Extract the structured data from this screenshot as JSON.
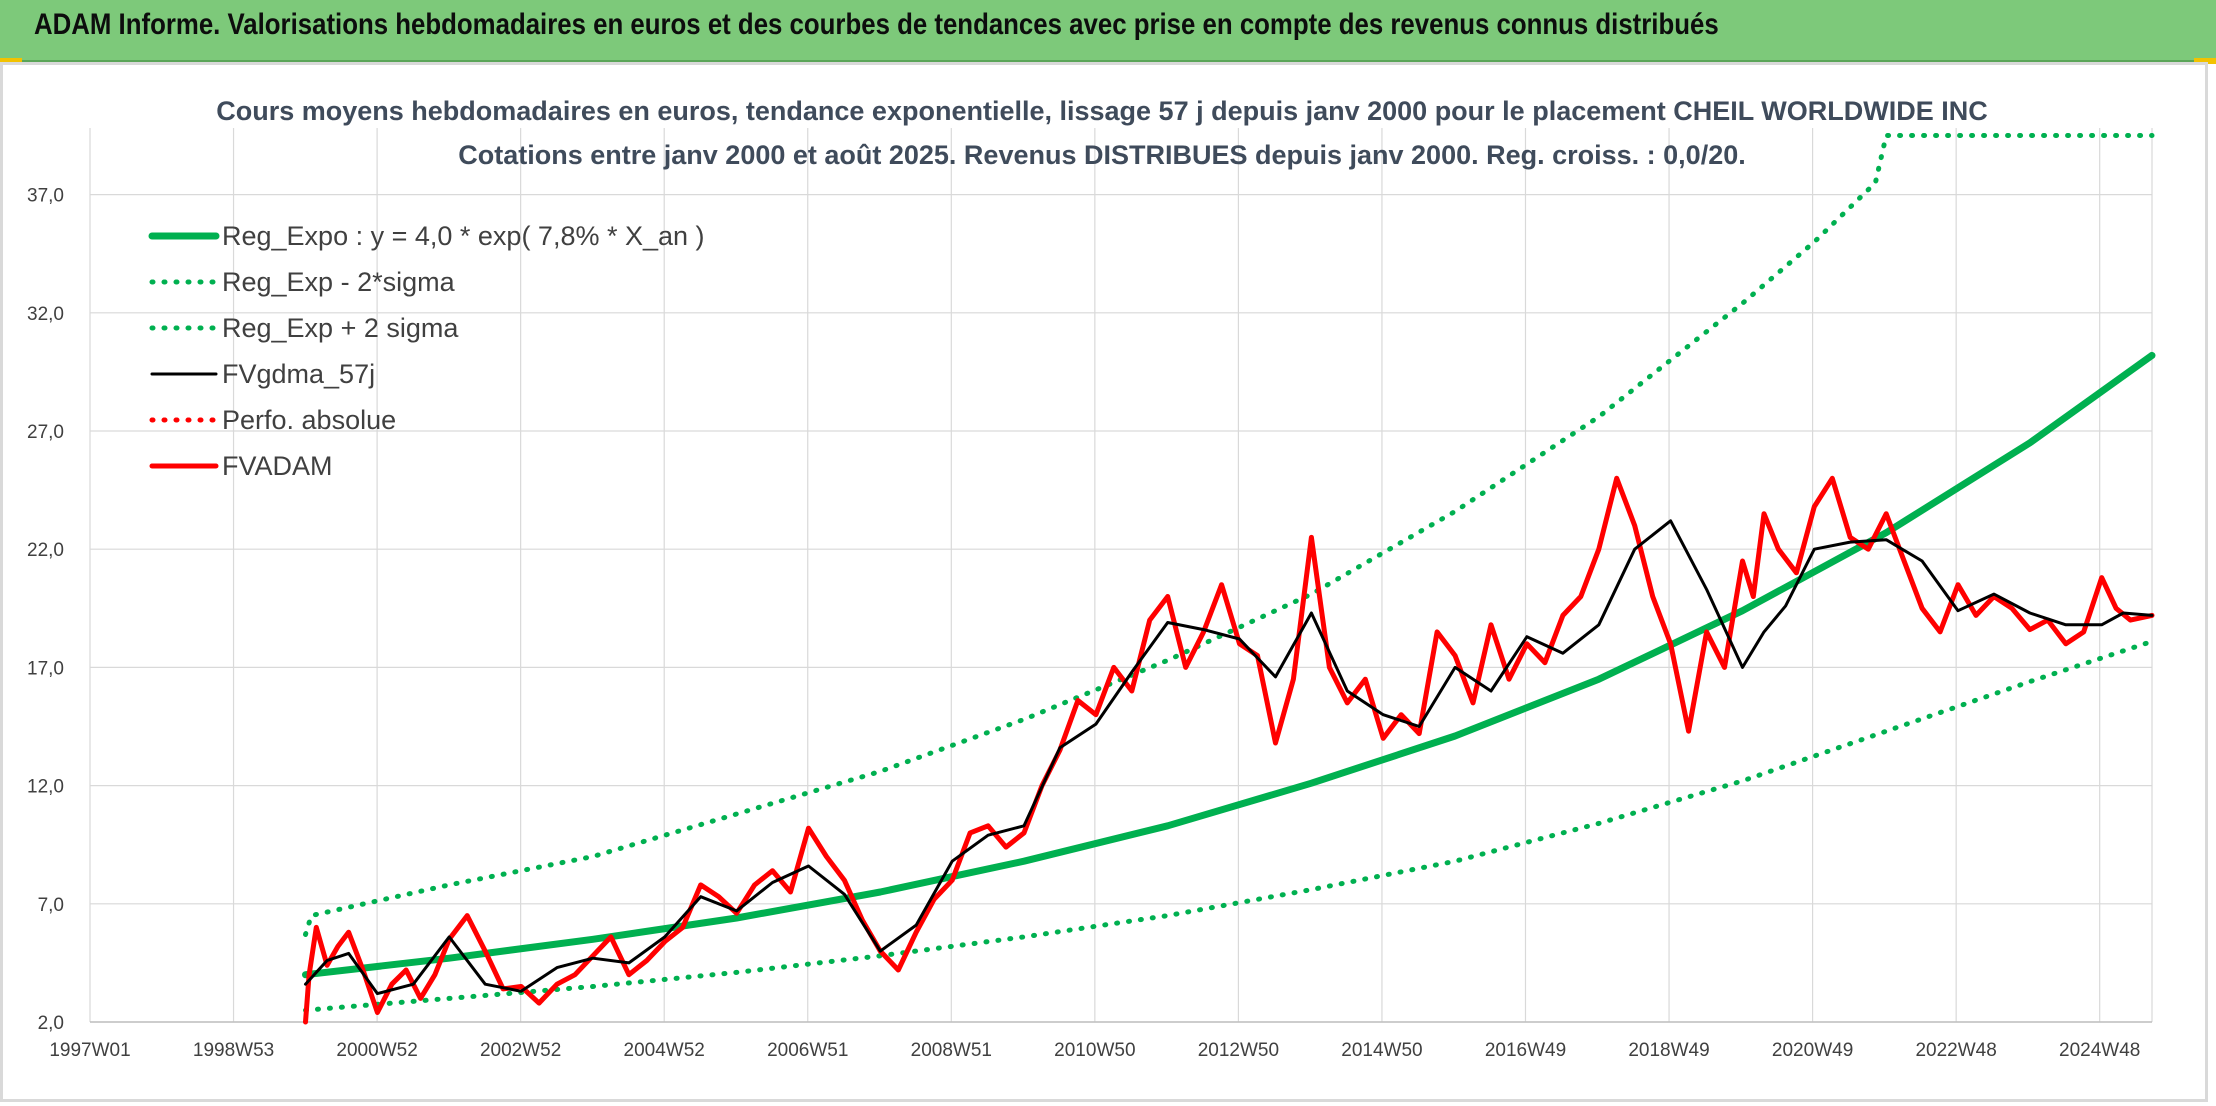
{
  "header": {
    "banner_title": "ADAM Informe. Valorisations hebdomadaires en euros et des courbes de tendances avec prise en compte des revenus connus distribués"
  },
  "colors": {
    "banner_bg": "#7dc97a",
    "trend_green": "#00b050",
    "price_red": "#ff0000",
    "smooth_black": "#000000",
    "grid": "#d9d9d9"
  },
  "chart_data": {
    "type": "line",
    "title": "Cours moyens hebdomadaires en euros, tendance exponentielle, lissage 57 j depuis janv 2000 pour le placement CHEIL WORLDWIDE INC",
    "subtitle": "Cotations entre janv 2000 et août 2025. Revenus DISTRIBUES depuis janv 2000. Reg. croiss. : 0,0/20.",
    "xlabel": "",
    "ylabel": "",
    "x_tick_labels": [
      "1997W01",
      "1998W53",
      "2000W52",
      "2002W52",
      "2004W52",
      "2006W51",
      "2008W51",
      "2010W50",
      "2012W50",
      "2014W50",
      "2016W49",
      "2018W49",
      "2020W49",
      "2022W48",
      "2024W48"
    ],
    "y_tick_labels": [
      "2,0",
      "7,0",
      "12,0",
      "17,0",
      "22,0",
      "27,0",
      "32,0",
      "37,0"
    ],
    "ylim": [
      2.0,
      39.5
    ],
    "xlim": [
      1997.0,
      2025.7
    ],
    "grid": true,
    "legend_position": "top-left",
    "series": [
      {
        "name": "Reg_Expo : y = 4,0 * exp( 7,8% *  X_an )",
        "style": "solid-thick",
        "color": "#00b050",
        "x": [
          2000.0,
          2002.0,
          2004.0,
          2006.0,
          2008.0,
          2010.0,
          2012.0,
          2014.0,
          2016.0,
          2018.0,
          2020.0,
          2022.0,
          2024.0,
          2025.7
        ],
        "values": [
          4.0,
          4.7,
          5.5,
          6.4,
          7.5,
          8.8,
          10.3,
          12.1,
          14.1,
          16.5,
          19.4,
          22.7,
          26.5,
          30.2
        ]
      },
      {
        "name": "Reg_Exp - 2*sigma",
        "style": "dotted",
        "color": "#00b050",
        "x": [
          2000.0,
          2002.0,
          2004.0,
          2006.0,
          2008.0,
          2010.0,
          2012.0,
          2014.0,
          2016.0,
          2018.0,
          2020.0,
          2022.0,
          2024.0,
          2025.7
        ],
        "values": [
          2.5,
          3.0,
          3.5,
          4.1,
          4.8,
          5.6,
          6.5,
          7.6,
          8.8,
          10.4,
          12.2,
          14.3,
          16.4,
          18.1
        ]
      },
      {
        "name": "Reg_Exp + 2 sigma",
        "style": "dotted",
        "color": "#00b050",
        "x": [
          2000.0,
          2000.08,
          2002.0,
          2004.0,
          2006.0,
          2008.0,
          2010.0,
          2012.0,
          2014.0,
          2016.0,
          2018.0,
          2020.0,
          2021.0,
          2021.85,
          2022.0,
          2023.0,
          2025.7
        ],
        "values": [
          5.7,
          6.5,
          7.8,
          9.0,
          10.8,
          12.6,
          14.8,
          17.3,
          20.1,
          23.6,
          27.6,
          32.4,
          35.0,
          37.5,
          39.5,
          39.5,
          39.5
        ]
      },
      {
        "name": "FVgdma_57j",
        "style": "solid-thin",
        "color": "#000000",
        "x": [
          2000.0,
          2000.3,
          2000.6,
          2001.0,
          2001.5,
          2002.0,
          2002.5,
          2003.0,
          2003.5,
          2004.0,
          2004.5,
          2005.0,
          2005.5,
          2006.0,
          2006.5,
          2007.0,
          2007.5,
          2008.0,
          2008.5,
          2009.0,
          2009.5,
          2010.0,
          2010.5,
          2011.0,
          2011.5,
          2012.0,
          2012.5,
          2013.0,
          2013.5,
          2014.0,
          2014.5,
          2015.0,
          2015.5,
          2016.0,
          2016.5,
          2017.0,
          2017.5,
          2018.0,
          2018.5,
          2019.0,
          2019.5,
          2020.0,
          2020.3,
          2020.6,
          2021.0,
          2021.5,
          2022.0,
          2022.5,
          2023.0,
          2023.5,
          2024.0,
          2024.5,
          2025.0,
          2025.3,
          2025.7
        ],
        "values": [
          3.6,
          4.6,
          4.9,
          3.2,
          3.6,
          5.6,
          3.6,
          3.3,
          4.3,
          4.7,
          4.5,
          5.6,
          7.3,
          6.7,
          7.9,
          8.6,
          7.4,
          5.0,
          6.1,
          8.8,
          9.9,
          10.3,
          13.6,
          14.6,
          16.8,
          18.9,
          18.6,
          18.2,
          16.6,
          19.3,
          16.0,
          15.0,
          14.5,
          17.0,
          16.0,
          18.3,
          17.6,
          18.8,
          22.0,
          23.2,
          20.3,
          17.0,
          18.5,
          19.6,
          22.0,
          22.3,
          22.4,
          21.5,
          19.4,
          20.1,
          19.3,
          18.8,
          18.8,
          19.3,
          19.2
        ]
      },
      {
        "name": "Perfo. absolue",
        "style": "dotted",
        "color": "#ff0000",
        "x": [],
        "values": []
      },
      {
        "name": "FVADAM",
        "style": "solid-thick",
        "color": "#ff0000",
        "x": [
          2000.0,
          2000.05,
          2000.15,
          2000.3,
          2000.45,
          2000.6,
          2000.8,
          2001.0,
          2001.2,
          2001.4,
          2001.6,
          2001.8,
          2002.0,
          2002.25,
          2002.5,
          2002.75,
          2003.0,
          2003.25,
          2003.5,
          2003.75,
          2004.0,
          2004.25,
          2004.5,
          2004.75,
          2005.0,
          2005.25,
          2005.5,
          2005.75,
          2006.0,
          2006.25,
          2006.5,
          2006.75,
          2007.0,
          2007.25,
          2007.5,
          2007.75,
          2008.0,
          2008.25,
          2008.5,
          2008.75,
          2009.0,
          2009.25,
          2009.5,
          2009.75,
          2010.0,
          2010.25,
          2010.5,
          2010.75,
          2011.0,
          2011.25,
          2011.5,
          2011.75,
          2012.0,
          2012.25,
          2012.5,
          2012.75,
          2013.0,
          2013.25,
          2013.5,
          2013.75,
          2014.0,
          2014.25,
          2014.5,
          2014.75,
          2015.0,
          2015.25,
          2015.5,
          2015.75,
          2016.0,
          2016.25,
          2016.5,
          2016.75,
          2017.0,
          2017.25,
          2017.5,
          2017.75,
          2018.0,
          2018.25,
          2018.5,
          2018.75,
          2019.0,
          2019.25,
          2019.5,
          2019.75,
          2020.0,
          2020.15,
          2020.3,
          2020.5,
          2020.75,
          2021.0,
          2021.25,
          2021.5,
          2021.75,
          2022.0,
          2022.25,
          2022.5,
          2022.75,
          2023.0,
          2023.25,
          2023.5,
          2023.75,
          2024.0,
          2024.25,
          2024.5,
          2024.75,
          2025.0,
          2025.2,
          2025.4,
          2025.7
        ],
        "values": [
          2.0,
          4.0,
          6.0,
          4.4,
          5.2,
          5.8,
          4.2,
          2.4,
          3.6,
          4.2,
          3.0,
          4.0,
          5.5,
          6.5,
          5.0,
          3.4,
          3.5,
          2.8,
          3.6,
          4.0,
          4.8,
          5.6,
          4.0,
          4.6,
          5.4,
          6.0,
          7.8,
          7.3,
          6.6,
          7.8,
          8.4,
          7.5,
          10.2,
          9.0,
          8.0,
          6.3,
          5.0,
          4.2,
          5.8,
          7.2,
          8.0,
          10.0,
          10.3,
          9.4,
          10.0,
          12.0,
          13.5,
          15.6,
          15.0,
          17.0,
          16.0,
          19.0,
          20.0,
          17.0,
          18.5,
          20.5,
          18.0,
          17.5,
          13.8,
          16.5,
          22.5,
          17.0,
          15.5,
          16.5,
          14.0,
          15.0,
          14.2,
          18.5,
          17.5,
          15.5,
          18.8,
          16.5,
          18.0,
          17.2,
          19.2,
          20.0,
          22.0,
          25.0,
          23.0,
          20.0,
          18.0,
          14.3,
          18.5,
          17.0,
          21.5,
          20.0,
          23.5,
          22.0,
          21.0,
          23.8,
          25.0,
          22.5,
          22.0,
          23.5,
          21.5,
          19.5,
          18.5,
          20.5,
          19.2,
          20.0,
          19.5,
          18.6,
          19.0,
          18.0,
          18.5,
          20.8,
          19.5,
          19.0,
          19.2
        ]
      }
    ]
  }
}
